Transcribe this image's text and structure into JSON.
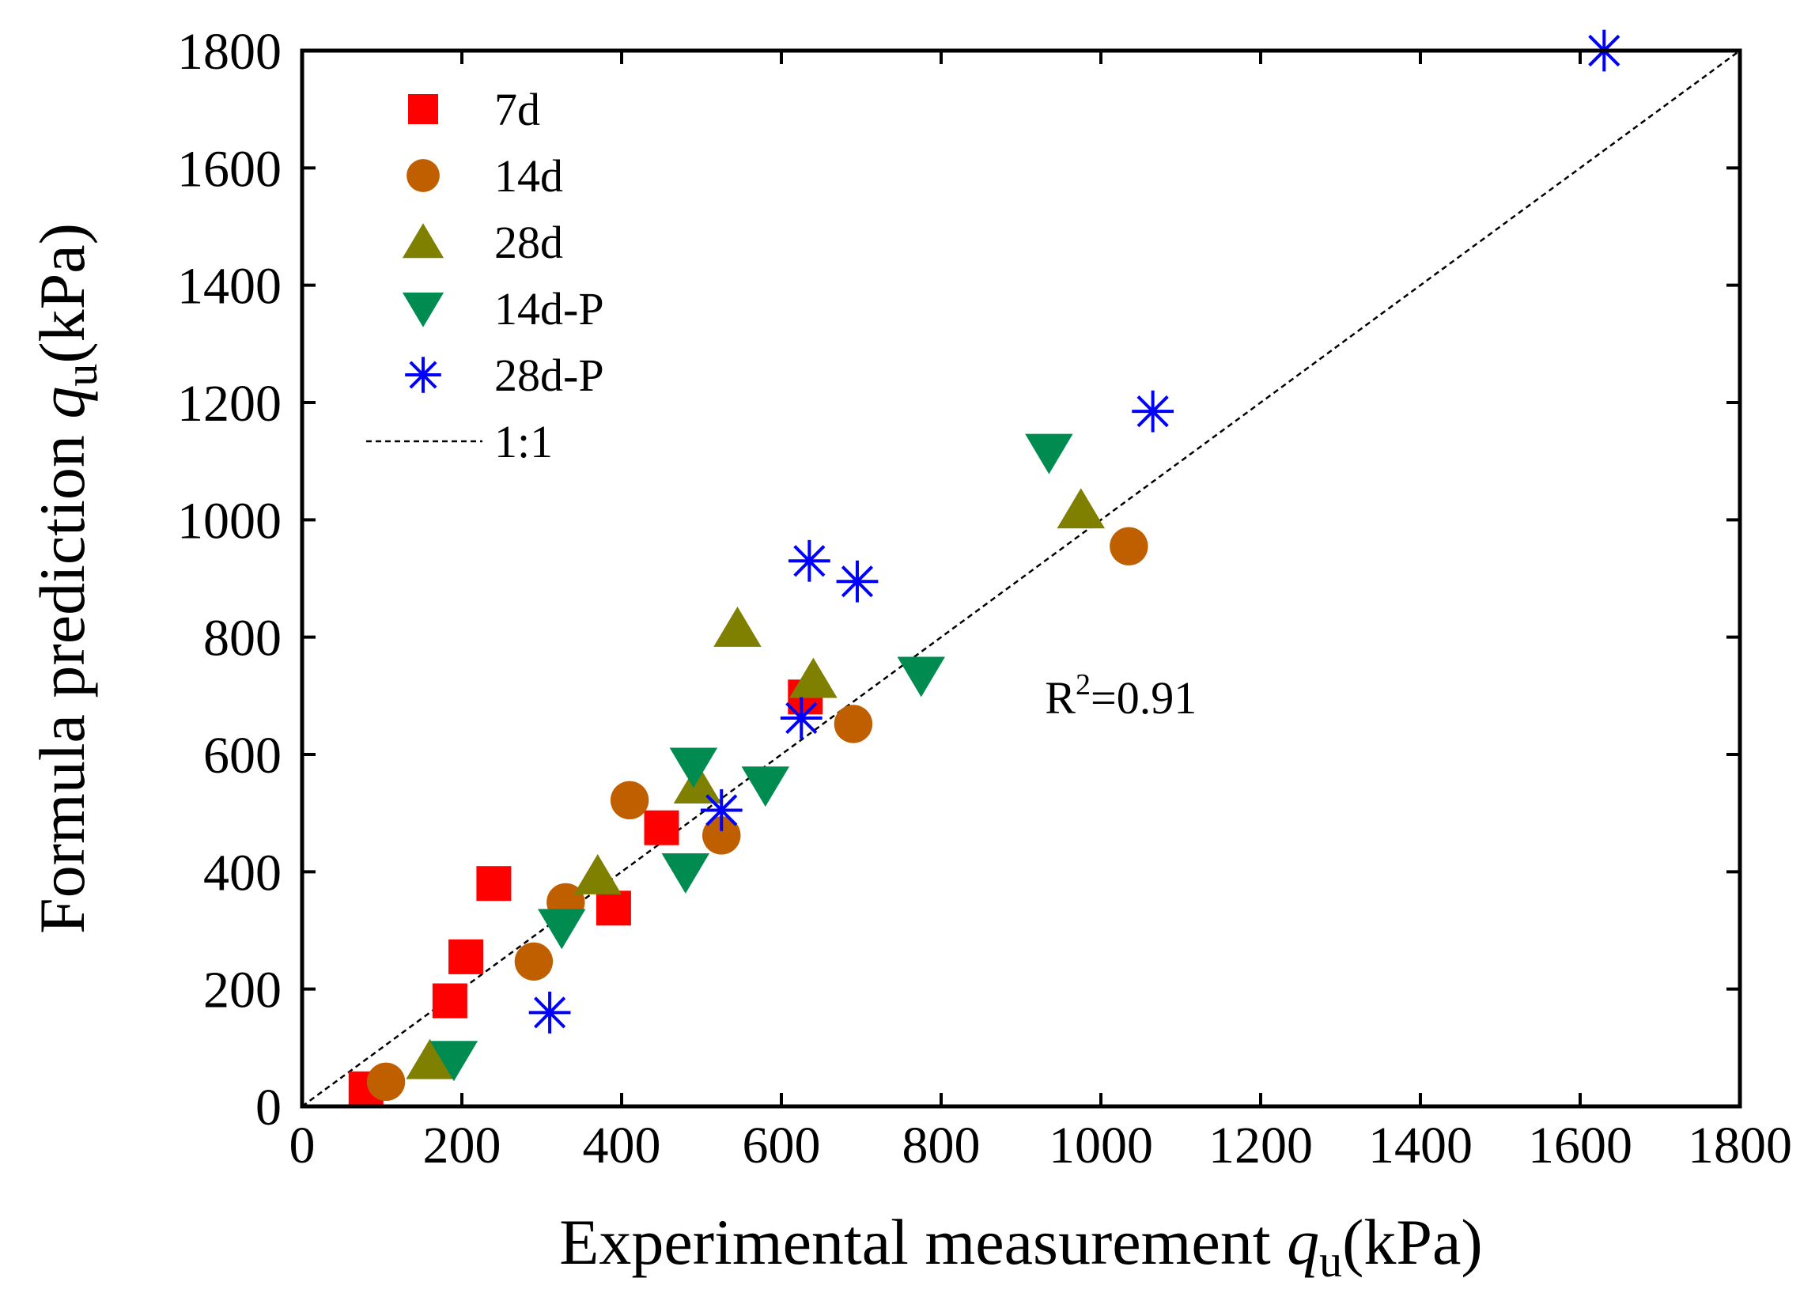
{
  "chart_data": {
    "type": "scatter",
    "title": "",
    "xlabel": {
      "prefix": "Experimental measurement ",
      "var": "q",
      "sub": "u",
      "suffix": "(kPa)"
    },
    "ylabel": {
      "prefix": "Formula prediction ",
      "var": "q",
      "sub": "u",
      "suffix": "(kPa)"
    },
    "xlim": [
      0,
      1800
    ],
    "ylim": [
      0,
      1800
    ],
    "xticks": [
      0,
      200,
      400,
      600,
      800,
      1000,
      1200,
      1400,
      1600,
      1800
    ],
    "yticks": [
      0,
      200,
      400,
      600,
      800,
      1000,
      1200,
      1400,
      1600,
      1800
    ],
    "grid": false,
    "legend_position": "top-left",
    "annotation": {
      "base": "R",
      "sup": "2",
      "rest": "=0.91",
      "x": 930,
      "y": 670
    },
    "reference_line": {
      "label": "1:1",
      "from": [
        0,
        0
      ],
      "to": [
        1800,
        1800
      ],
      "color": "#000000",
      "style": "dashed"
    },
    "series": [
      {
        "name": "7d",
        "marker": "square",
        "color": "#ff0000",
        "points": [
          [
            80,
            30
          ],
          [
            185,
            180
          ],
          [
            205,
            255
          ],
          [
            240,
            380
          ],
          [
            390,
            338
          ],
          [
            450,
            475
          ],
          [
            630,
            698
          ]
        ]
      },
      {
        "name": "14d",
        "marker": "circle",
        "color": "#bf5f00",
        "points": [
          [
            105,
            42
          ],
          [
            290,
            247
          ],
          [
            330,
            348
          ],
          [
            410,
            522
          ],
          [
            525,
            462
          ],
          [
            690,
            652
          ],
          [
            1035,
            955
          ]
        ]
      },
      {
        "name": "28d",
        "marker": "triangle-up",
        "color": "#808000",
        "points": [
          [
            160,
            78
          ],
          [
            370,
            393
          ],
          [
            495,
            548
          ],
          [
            545,
            815
          ],
          [
            640,
            728
          ],
          [
            975,
            1017
          ]
        ]
      },
      {
        "name": "14d-P",
        "marker": "triangle-down",
        "color": "#008c50",
        "points": [
          [
            190,
            80
          ],
          [
            325,
            305
          ],
          [
            480,
            400
          ],
          [
            490,
            580
          ],
          [
            580,
            548
          ],
          [
            775,
            735
          ],
          [
            935,
            1115
          ]
        ]
      },
      {
        "name": "28d-P",
        "marker": "asterisk",
        "color": "#0000ff",
        "points": [
          [
            310,
            160
          ],
          [
            525,
            505
          ],
          [
            625,
            662
          ],
          [
            635,
            930
          ],
          [
            695,
            895
          ],
          [
            1065,
            1185
          ],
          [
            1630,
            1800
          ]
        ]
      }
    ]
  }
}
